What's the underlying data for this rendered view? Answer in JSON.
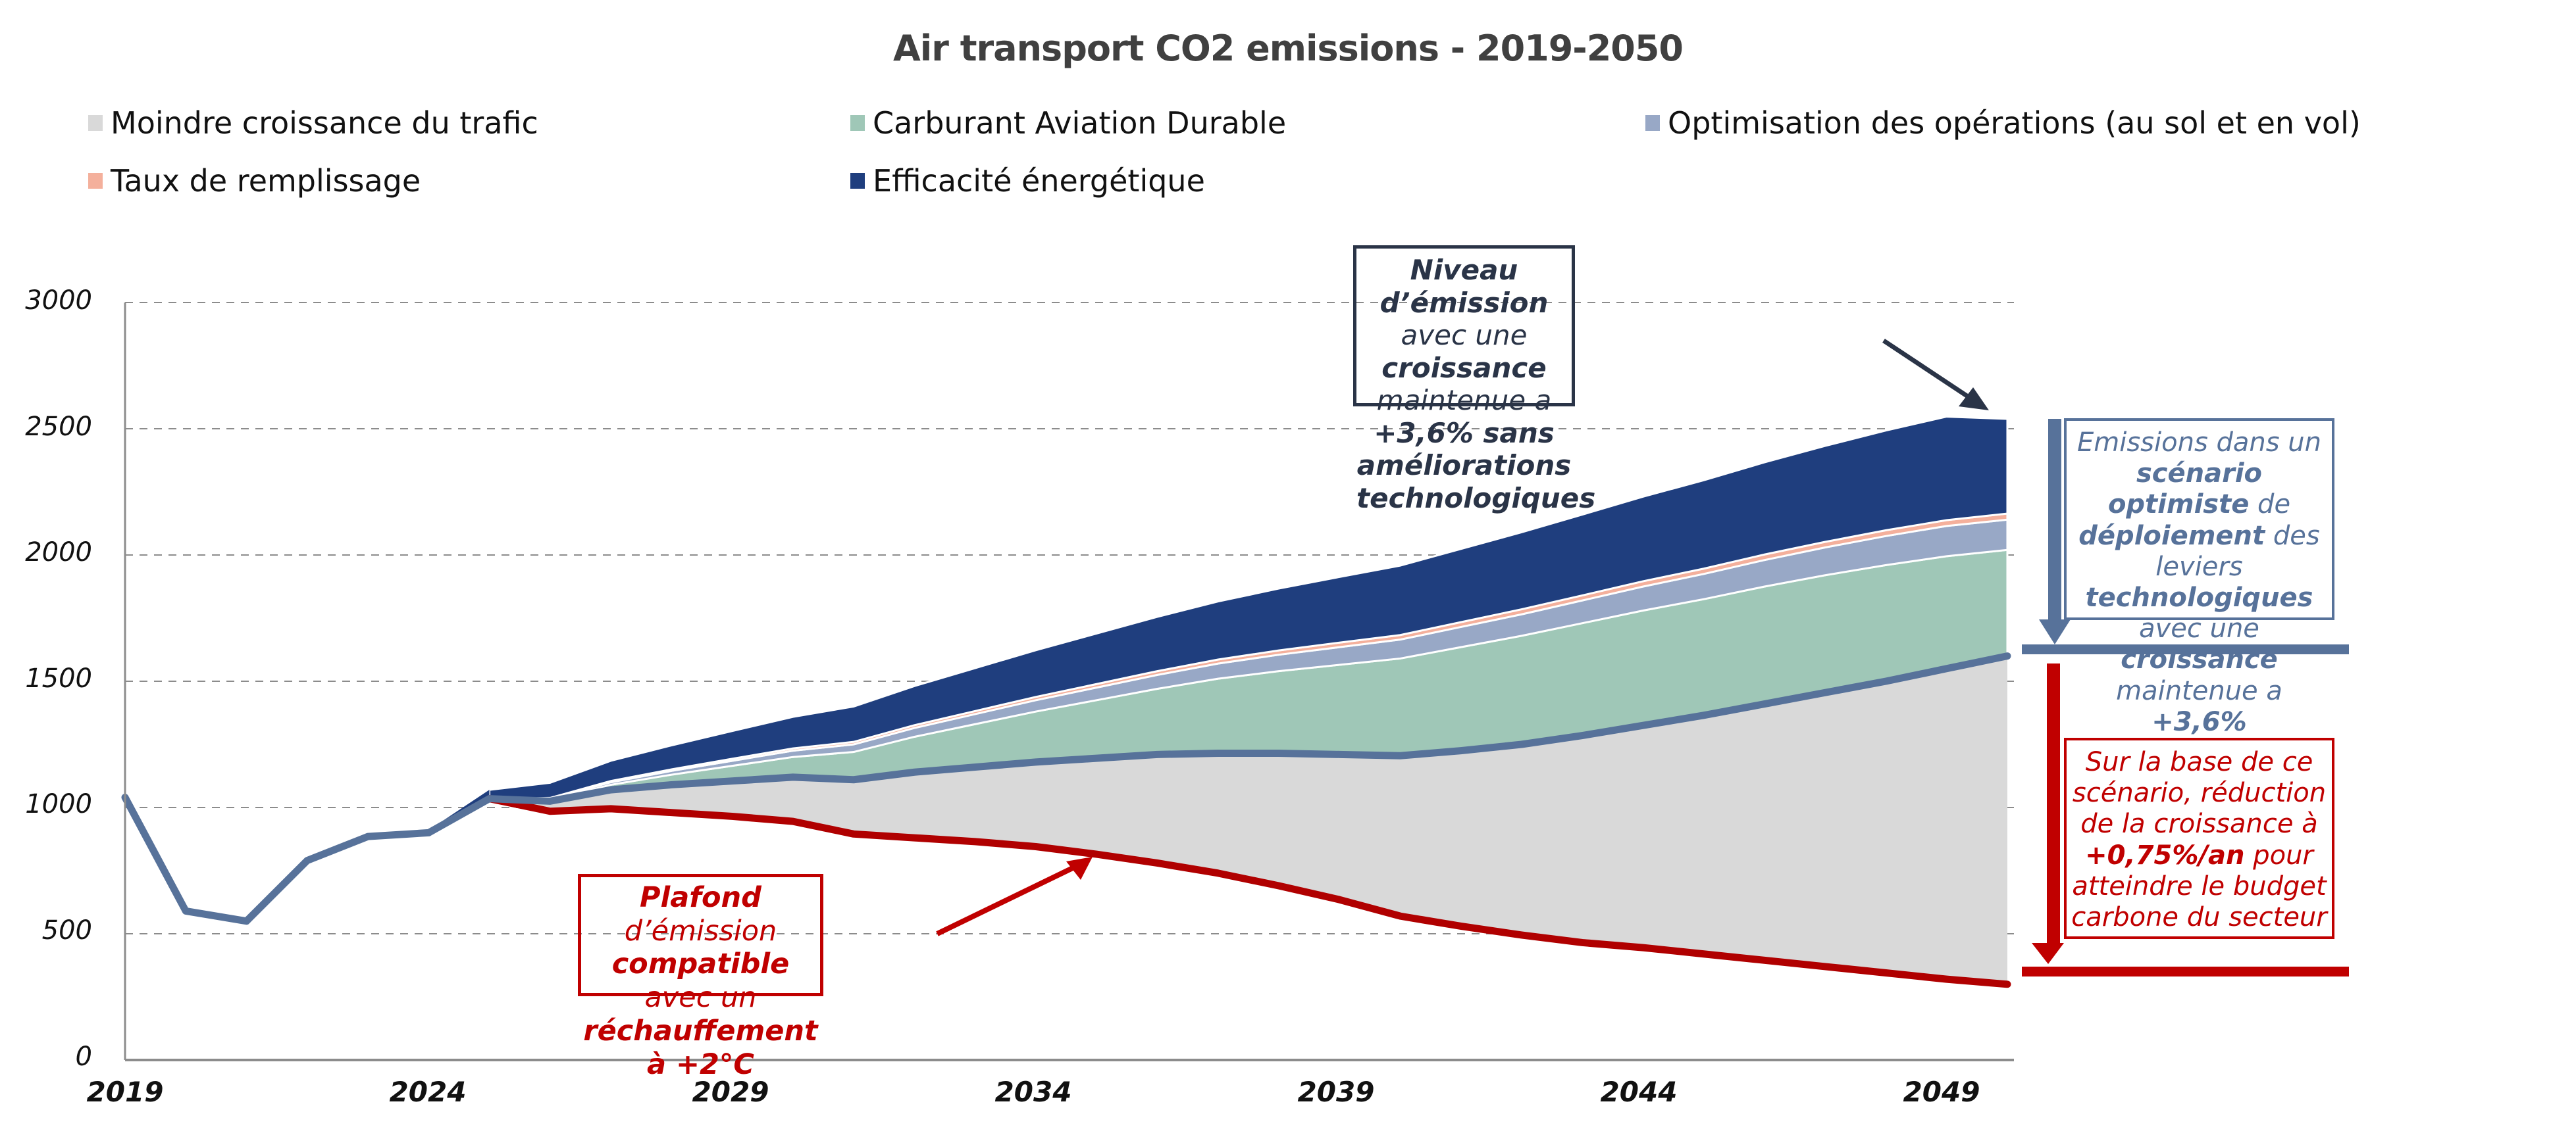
{
  "title": "Air transport CO2 emissions - 2019-2050",
  "legend": [
    {
      "label": "Moindre croissance du trafic",
      "color": "#d9d9d9"
    },
    {
      "label": "Carburant Aviation Durable",
      "color": "#9fc7b7"
    },
    {
      "label": "Optimisation des opérations (au sol et en vol)",
      "color": "#98a8c6"
    },
    {
      "label": "Taux de remplissage",
      "color": "#f4b09c"
    },
    {
      "label": "Efficacité énergétique",
      "color": "#1f3e7e"
    }
  ],
  "axes": {
    "y_ticks": [
      "3000",
      "2500",
      "2000",
      "1500",
      "1000",
      "500",
      "0"
    ],
    "x_ticks": [
      "2019",
      "2024",
      "2029",
      "2034",
      "2039",
      "2044",
      "2049"
    ]
  },
  "annotations": {
    "top": {
      "b1": "Niveau d’émission",
      "t1": " avec une ",
      "b2": "croissance",
      "t2": " maintenue a ",
      "b3": "+3,6% sans améliorations technologiques"
    },
    "blue": {
      "t1": "Emissions dans un ",
      "b1": "scénario optimiste",
      "t2": " de ",
      "b2": "déploiement",
      "t3": " des leviers ",
      "b3": "technologiques",
      "t4": " avec une ",
      "b4": "croissance",
      "t5": " maintenue a ",
      "b5": "+3,6%"
    },
    "red": {
      "t1": "Sur la base de ce scénario, réduction de la croissance à ",
      "b1": "+0,75%/an",
      "t2": " pour atteindre le budget carbone du secteur"
    },
    "plafond": {
      "b1": "Plafond",
      "t1": " d’émission ",
      "b2": "compatible",
      "t2": " avec un ",
      "b3": "réchauffement à +2°C"
    }
  },
  "colors": {
    "scenario_line": "#57729a",
    "ceiling_line": "#b00000",
    "arrow_red": "#c00000",
    "arrow_dark": "#2a3447",
    "grid": "#8c8c8c"
  },
  "chart_data": {
    "type": "area",
    "title": "Air transport CO2 emissions - 2019-2050",
    "xlabel": "",
    "ylabel": "",
    "ylim": [
      0,
      3000
    ],
    "grid": true,
    "legend_position": "top",
    "x": [
      2019,
      2020,
      2021,
      2022,
      2023,
      2024,
      2025,
      2026,
      2027,
      2028,
      2029,
      2030,
      2031,
      2032,
      2033,
      2034,
      2035,
      2036,
      2037,
      2038,
      2039,
      2040,
      2041,
      2042,
      2043,
      2044,
      2045,
      2046,
      2047,
      2048,
      2049,
      2050
    ],
    "series": [
      {
        "name": "Scénario optimiste (ligne)",
        "type": "line",
        "values": [
          1040,
          590,
          550,
          790,
          885,
          900,
          1035,
          1025,
          1070,
          1090,
          1105,
          1120,
          1110,
          1140,
          1160,
          1180,
          1195,
          1210,
          1215,
          1215,
          1210,
          1205,
          1225,
          1250,
          1285,
          1325,
          1365,
          1410,
          1455,
          1500,
          1550,
          1600
        ]
      },
      {
        "name": "Plafond +2°C (ligne)",
        "type": "line",
        "values": [
          null,
          null,
          null,
          null,
          null,
          null,
          1035,
          985,
          995,
          980,
          965,
          945,
          895,
          880,
          865,
          845,
          815,
          780,
          740,
          690,
          635,
          570,
          530,
          495,
          465,
          445,
          420,
          395,
          370,
          345,
          320,
          300
        ]
      },
      {
        "name": "Moindre croissance du trafic",
        "values": [
          null,
          null,
          null,
          null,
          null,
          null,
          0,
          40,
          75,
          110,
          140,
          175,
          215,
          260,
          295,
          335,
          380,
          430,
          475,
          525,
          575,
          635,
          695,
          755,
          820,
          880,
          945,
          1015,
          1085,
          1155,
          1230,
          1300
        ]
      },
      {
        "name": "Carburant Aviation Durable",
        "values": [
          null,
          null,
          null,
          null,
          null,
          null,
          0,
          5,
          20,
          40,
          60,
          80,
          110,
          140,
          170,
          200,
          230,
          260,
          295,
          325,
          355,
          385,
          410,
          430,
          445,
          455,
          460,
          465,
          465,
          460,
          445,
          420
        ]
      },
      {
        "name": "Optimisation des opérations (au sol et en vol)",
        "values": [
          null,
          null,
          null,
          null,
          null,
          null,
          0,
          5,
          10,
          15,
          20,
          25,
          30,
          35,
          40,
          45,
          50,
          55,
          60,
          65,
          70,
          75,
          80,
          85,
          90,
          95,
          100,
          105,
          110,
          115,
          120,
          120
        ]
      },
      {
        "name": "Taux de remplissage",
        "values": [
          null,
          null,
          null,
          null,
          null,
          null,
          0,
          3,
          5,
          6,
          8,
          9,
          10,
          11,
          12,
          13,
          14,
          15,
          16,
          17,
          18,
          18,
          19,
          20,
          20,
          21,
          21,
          22,
          22,
          23,
          23,
          24
        ]
      },
      {
        "name": "Efficacité énergétique",
        "values": [
          null,
          null,
          null,
          null,
          null,
          null,
          35,
          60,
          80,
          95,
          110,
          125,
          140,
          155,
          170,
          185,
          200,
          215,
          230,
          245,
          260,
          275,
          290,
          305,
          320,
          335,
          350,
          365,
          380,
          395,
          410,
          375
        ]
      },
      {
        "name": "Niveau sans améliorations (total)",
        "type": "line",
        "values": [
          1040,
          590,
          550,
          790,
          890,
          910,
          1070,
          1110,
          1150,
          1190,
          1230,
          1275,
          1315,
          1360,
          1410,
          1455,
          1505,
          1555,
          1610,
          1665,
          1725,
          1785,
          1850,
          1915,
          1985,
          2055,
          2130,
          2205,
          2285,
          2365,
          2445,
          2520
        ]
      }
    ],
    "annotations": [
      "Niveau d’émission avec une croissance maintenue a +3,6% sans améliorations technologiques",
      "Emissions dans un scénario optimiste de déploiement des leviers technologiques avec une croissance maintenue a +3,6%",
      "Sur la base de ce scénario, réduction de la croissance à +0,75%/an pour atteindre le budget carbone du secteur",
      "Plafond d’émission compatible avec un réchauffement à +2°C"
    ]
  }
}
